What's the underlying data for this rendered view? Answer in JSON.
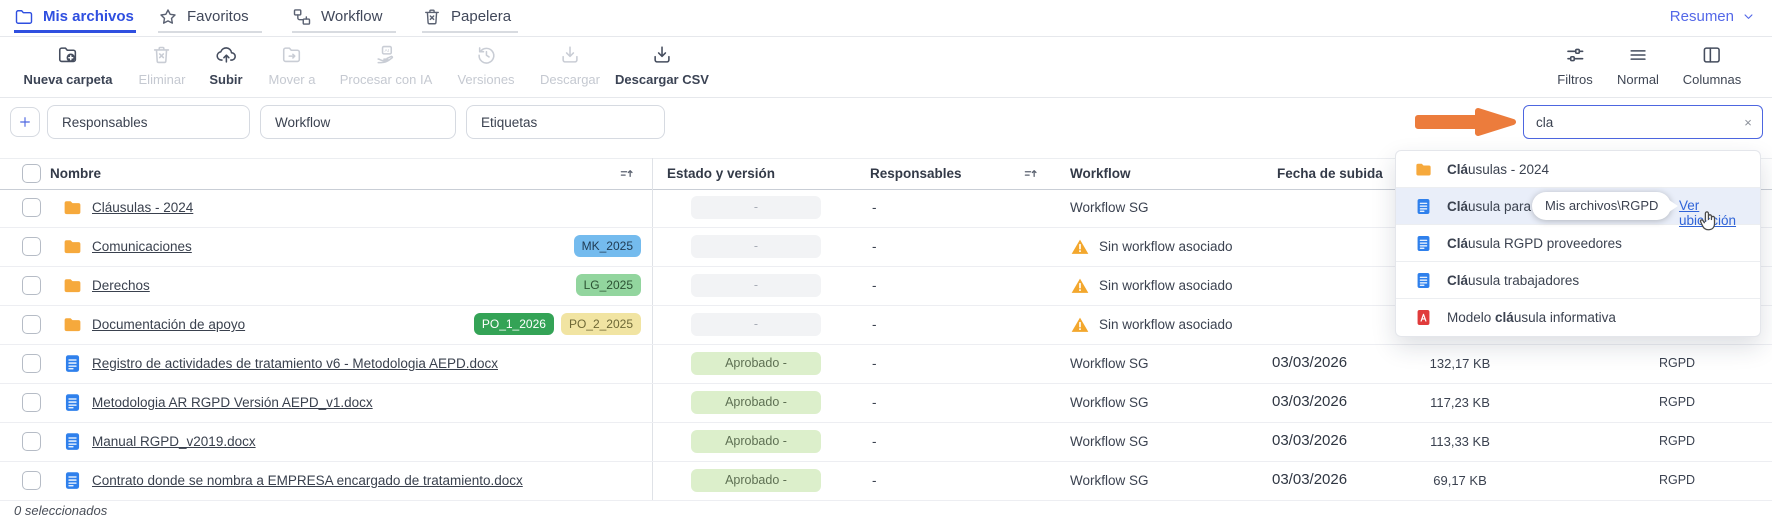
{
  "window": {
    "resumen_label": "Resumen"
  },
  "tabs": [
    {
      "id": "mis-archivos",
      "label": "Mis archivos",
      "icon": "folder-outline",
      "active": true
    },
    {
      "id": "favoritos",
      "label": "Favoritos",
      "icon": "star",
      "active": false
    },
    {
      "id": "workflow",
      "label": "Workflow",
      "icon": "workflow-nodes",
      "active": false
    },
    {
      "id": "papelera",
      "label": "Papelera",
      "icon": "trash",
      "active": false
    }
  ],
  "toolbar": {
    "left": [
      {
        "label": "Nueva carpeta",
        "icon": "new-folder",
        "enabled": true
      },
      {
        "label": "Eliminar",
        "icon": "trash",
        "enabled": false
      },
      {
        "label": "Subir",
        "icon": "upload-cloud",
        "enabled": true
      },
      {
        "label": "Mover a",
        "icon": "move-folder",
        "enabled": false
      },
      {
        "label": "Procesar con IA",
        "icon": "ai-process",
        "enabled": false
      },
      {
        "label": "Versiones",
        "icon": "history",
        "enabled": false
      },
      {
        "label": "Descargar",
        "icon": "download",
        "enabled": false
      },
      {
        "label": "Descargar CSV",
        "icon": "download",
        "enabled": true
      }
    ],
    "right": [
      {
        "label": "Filtros",
        "icon": "filter-sliders"
      },
      {
        "label": "Normal",
        "icon": "list-lines"
      },
      {
        "label": "Columnas",
        "icon": "columns-layout"
      }
    ]
  },
  "filterbar": {
    "add_label": "+",
    "selects": [
      "Responsables",
      "Workflow",
      "Etiquetas"
    ],
    "search": {
      "value": "cla",
      "clear_label": "×"
    }
  },
  "table": {
    "headers": {
      "name": "Nombre",
      "status": "Estado y versión",
      "responsables": "Responsables",
      "workflow": "Workflow",
      "date": "Fecha de subida"
    },
    "rows": [
      {
        "icon": "folder",
        "name": "Cláusulas - 2024",
        "tags": [],
        "status": {
          "label": "-",
          "kind": "empty"
        },
        "responsables": "-",
        "workflow": {
          "label": "Workflow SG",
          "warning": false
        },
        "date": "",
        "size": "",
        "category": ""
      },
      {
        "icon": "folder",
        "name": "Comunicaciones",
        "tags": [
          {
            "label": "MK_2025",
            "bg": "#74bbee",
            "fg": "#1f3a52"
          }
        ],
        "status": {
          "label": "-",
          "kind": "empty"
        },
        "responsables": "-",
        "workflow": {
          "label": "Sin workflow asociado",
          "warning": true
        },
        "date": "",
        "size": "",
        "category": ""
      },
      {
        "icon": "folder",
        "name": "Derechos",
        "tags": [
          {
            "label": "LG_2025",
            "bg": "#92d59e",
            "fg": "#2c5233"
          }
        ],
        "status": {
          "label": "-",
          "kind": "empty"
        },
        "responsables": "-",
        "workflow": {
          "label": "Sin workflow asociado",
          "warning": true
        },
        "date": "",
        "size": "",
        "category": ""
      },
      {
        "icon": "folder",
        "name": "Documentación de apoyo",
        "tags": [
          {
            "label": "PO_1_2026",
            "bg": "#34a356",
            "fg": "#ffffff"
          },
          {
            "label": "PO_2_2025",
            "bg": "#f1e4a2",
            "fg": "#6e6836"
          }
        ],
        "status": {
          "label": "-",
          "kind": "empty"
        },
        "responsables": "-",
        "workflow": {
          "label": "Sin workflow asociado",
          "warning": true
        },
        "date": "",
        "size": "",
        "category": ""
      },
      {
        "icon": "word-doc",
        "name": "Registro de actividades de tratamiento v6 - Metodologia AEPD.docx",
        "tags": [],
        "status": {
          "label": "Aprobado -",
          "kind": "approved"
        },
        "responsables": "-",
        "workflow": {
          "label": "Workflow SG",
          "warning": false
        },
        "date": "03/03/2026",
        "size": "132,17 KB",
        "category": "RGPD"
      },
      {
        "icon": "word-doc",
        "name": "Metodologia AR RGPD Versión AEPD_v1.docx",
        "tags": [],
        "status": {
          "label": "Aprobado -",
          "kind": "approved"
        },
        "responsables": "-",
        "workflow": {
          "label": "Workflow SG",
          "warning": false
        },
        "date": "03/03/2026",
        "size": "117,23 KB",
        "category": "RGPD"
      },
      {
        "icon": "word-doc",
        "name": "Manual RGPD_v2019.docx",
        "tags": [],
        "status": {
          "label": "Aprobado -",
          "kind": "approved"
        },
        "responsables": "-",
        "workflow": {
          "label": "Workflow SG",
          "warning": false
        },
        "date": "03/03/2026",
        "size": "113,33 KB",
        "category": "RGPD"
      },
      {
        "icon": "word-doc",
        "name": "Contrato donde se nombra a EMPRESA encargado de tratamiento.docx",
        "tags": [],
        "status": {
          "label": "Aprobado -",
          "kind": "approved"
        },
        "responsables": "-",
        "workflow": {
          "label": "Workflow SG",
          "warning": false
        },
        "date": "03/03/2026",
        "size": "69,17 KB",
        "category": "RGPD"
      }
    ],
    "footer": "0 seleccionados"
  },
  "search_dropdown": {
    "items": [
      {
        "icon": "folder",
        "prefix": "",
        "match": "Clá",
        "rest": "usulas - 2024",
        "highlighted": false
      },
      {
        "icon": "word-doc",
        "prefix": "",
        "match": "Clá",
        "rest": "usula para c",
        "highlighted": true
      },
      {
        "icon": "word-doc",
        "prefix": "",
        "match": "Clá",
        "rest": "usula RGPD proveedores",
        "highlighted": false
      },
      {
        "icon": "word-doc",
        "prefix": "",
        "match": "Clá",
        "rest": "usula trabajadores",
        "highlighted": false
      },
      {
        "icon": "pdf",
        "prefix": "Modelo ",
        "match": "clá",
        "rest": "usula informativa",
        "highlighted": false
      }
    ],
    "tooltip": {
      "text": "Mis archivos\\RGPD",
      "link": "Ver ubicación"
    }
  },
  "colors": {
    "accent_blue": "#2f4fe0",
    "link_blue": "#3064d8",
    "arrow_orange": "#ec7c3c",
    "warning_orange": "#f3a72d",
    "approved_bg": "#dcefcb",
    "folder_yellow": "#f6a93c",
    "doc_blue": "#2f80ec",
    "pdf_red": "#e03b3b"
  }
}
